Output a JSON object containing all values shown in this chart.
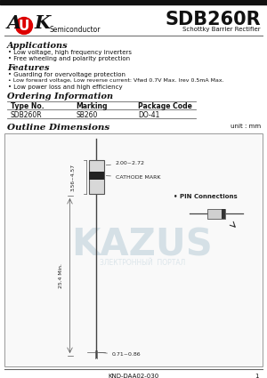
{
  "title": "SDB260R",
  "subtitle": "Schottky Barrier Rectifier",
  "logo_A": "A",
  "logo_U": "U",
  "logo_K": "K",
  "logo_semiconductor": "Semiconductor",
  "section_applications": "Applications",
  "app_bullets": [
    "Low voltage, high frequency inverters",
    "Free wheeling and polarity protection"
  ],
  "section_features": "Features",
  "feat_bullets": [
    "Guarding for overvoltage protection",
    "Low forward voltage, Low reverse current: Vfwd 0.7V Max. Irev 0.5mA Max.",
    "Low power loss and high efficiency"
  ],
  "section_ordering": "Ordering Information",
  "order_headers": [
    "Type No.",
    "Marking",
    "Package Code"
  ],
  "order_row": [
    "SDB260R",
    "SB260",
    "DO-41"
  ],
  "section_outline": "Outline Dimensions",
  "unit_label": "unit : mm",
  "dim_cathode": "CATHODE MARK",
  "dim_body_dia": "2.00~2.72",
  "dim_lead_dia": "0.71~0.86",
  "dim_lead_len": "25.4 Min.",
  "dim_body_len": "3.56~4.57",
  "pin_connections": "PIN Connections",
  "footer": "KND-DAA02-030",
  "page_num": "1",
  "bg_color": "#ffffff",
  "bar_color": "#111111",
  "logo_circle_color": "#dd0000",
  "text_color": "#111111",
  "border_color": "#666666",
  "light_border": "#999999",
  "watermark_color": "#b8cdd8",
  "diode_body_color": "#d8d8d8",
  "diode_stripe_color": "#222222",
  "lead_color": "#444444"
}
